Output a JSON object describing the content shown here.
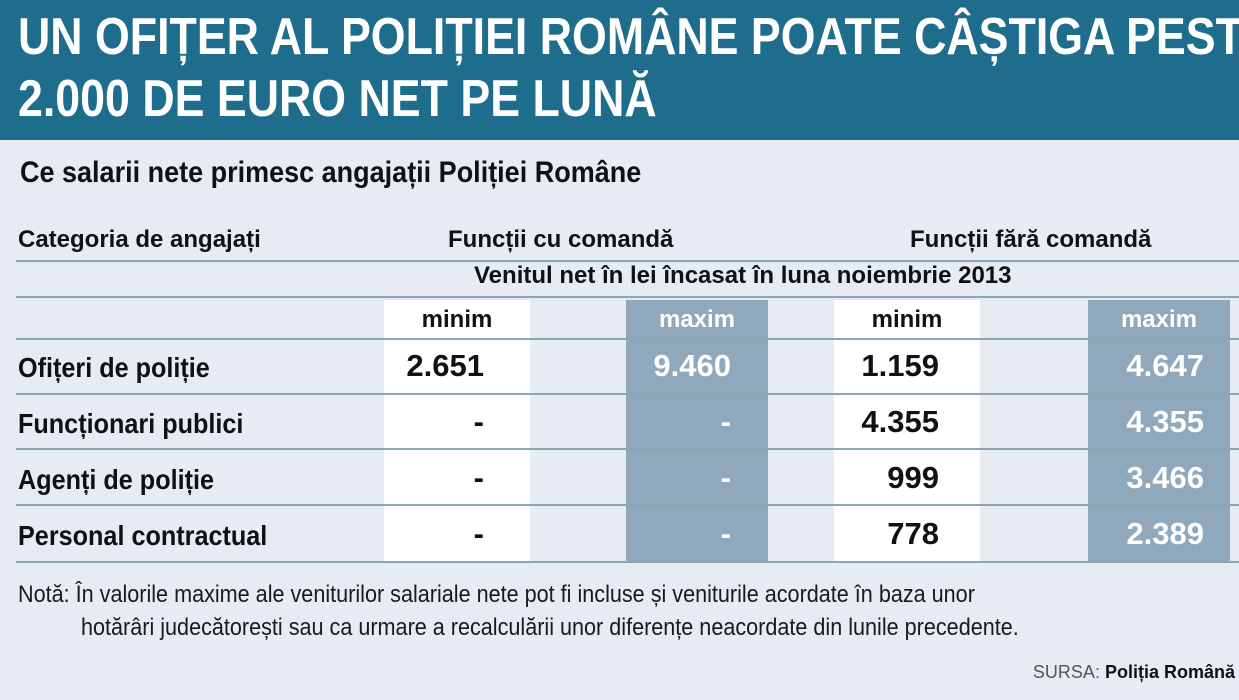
{
  "title": {
    "line1": "UN OFIȚER AL POLIȚIEI ROMÂNE POATE CÂȘTIGA PESTE",
    "line2": "2.000 DE EURO NET PE LUNĂ"
  },
  "subtitle": "Ce salarii nete primesc angajații Poliției Române",
  "table": {
    "header_category": "Categoria de angajați",
    "header_group1": "Funcții cu comandă",
    "header_group2": "Funcții fără comandă",
    "header_income": "Venitul net în lei încasat în luna noiembrie 2013",
    "sub_headers": [
      "minim",
      "maxim",
      "minim",
      "maxim"
    ],
    "rows": [
      {
        "category": "Ofițeri de poliție",
        "cu_min": "2.651",
        "cu_max": "9.460",
        "fara_min": "1.159",
        "fara_max": "4.647"
      },
      {
        "category": "Funcționari publici",
        "cu_min": "-",
        "cu_max": "-",
        "fara_min": "4.355",
        "fara_max": "4.355"
      },
      {
        "category": "Agenți de poliție",
        "cu_min": "-",
        "cu_max": "-",
        "fara_min": "999",
        "fara_max": "3.466"
      },
      {
        "category": "Personal contractual",
        "cu_min": "-",
        "cu_max": "-",
        "fara_min": "778",
        "fara_max": "2.389"
      }
    ]
  },
  "note": {
    "line1": "Notă: În valorile maxime ale veniturilor salariale nete pot fi incluse și veniturile acordate în baza unor",
    "line2": "hotărâri judecătorești sau ca urmare a recalculării unor diferențe neacordate din lunile precedente."
  },
  "source": {
    "label": "SURSA:",
    "name": "Poliția Română"
  },
  "colors": {
    "banner": "#1f6d8c",
    "background": "#e6ecf1",
    "maxim_column": "#8fa8bc",
    "minim_column": "#ffffff"
  }
}
